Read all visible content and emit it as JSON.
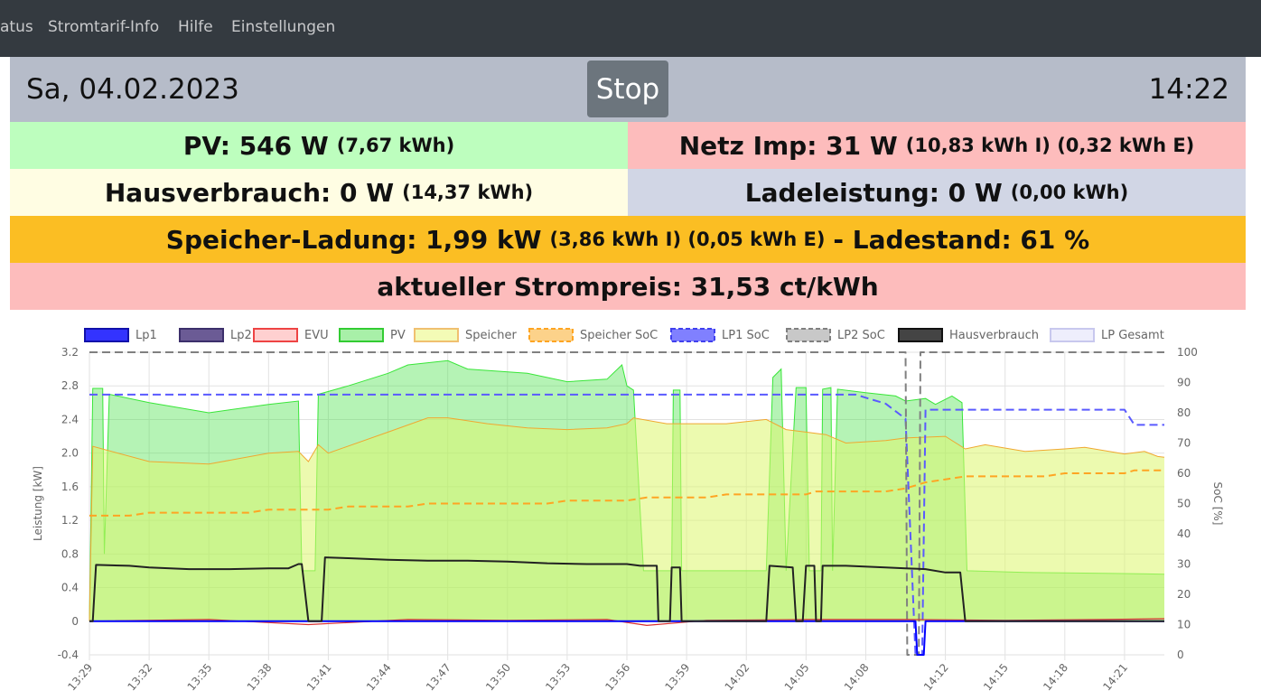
{
  "nav": {
    "items": [
      "atus",
      "Stromtarif-Info",
      "Hilfe",
      "Einstellungen"
    ]
  },
  "header": {
    "date": "Sa, 04.02.2023",
    "stop_label": "Stop",
    "time": "14:22"
  },
  "tiles": {
    "pv": {
      "label": "PV: 546 W",
      "detail": "(7,67 kWh)",
      "color": "#bdfebe"
    },
    "netz": {
      "label": "Netz Imp: 31 W",
      "detail": "(10,83 kWh I) (0,32 kWh E)",
      "color": "#fdbcbc"
    },
    "haus": {
      "label": "Hausverbrauch: 0 W",
      "detail": "(14,37 kWh)",
      "color": "#fffde3"
    },
    "lade": {
      "label": "Ladeleistung: 0 W",
      "detail": "(0,00 kWh)",
      "color": "#d1d6e5"
    },
    "speicher": {
      "label": "Speicher-Ladung: 1,99 kW",
      "detail": "(3,86 kWh I) (0,05 kWh E)",
      "label2": "- Ladestand: 61 %",
      "color": "#fbbe23"
    },
    "preis": {
      "label": "aktueller Strompreis: 31,53 ct/kWh",
      "color": "#fdbcbc"
    }
  },
  "chart_data": {
    "type": "area",
    "legend": [
      "Lp1",
      "Lp2",
      "EVU",
      "PV",
      "Speicher",
      "Speicher SoC",
      "LP1 SoC",
      "LP2 SoC",
      "Hausverbrauch",
      "LP Gesamt"
    ],
    "legend_position": "top",
    "colors": {
      "Lp1": "#0000ff",
      "Lp2": "#4b3d84",
      "EVU": "#ff0000",
      "PV": "#00e000",
      "Speicher": "#eaf98c",
      "Speicher SoC": "#fea523",
      "LP1 SoC": "#5a5aff",
      "LP2 SoC": "#808080",
      "Hausverbrauch": "#000000",
      "LP Gesamt": "#d8d8f5"
    },
    "ylabel_left": "Leistung [kW]",
    "ylabel_right": "SoC [%]",
    "ylim_left": [
      -0.4,
      3.2
    ],
    "ylim_right": [
      0,
      100
    ],
    "yticks_left": [
      "3.2",
      "2.8",
      "2.4",
      "2.0",
      "1.6",
      "1.2",
      "0.8",
      "0.4",
      "0",
      "-0.4"
    ],
    "yticks_right": [
      "100",
      "90",
      "80",
      "70",
      "60",
      "50",
      "40",
      "30",
      "20",
      "10",
      "0"
    ],
    "x_start": "13:29",
    "x_end": "14:23",
    "xticks": [
      "13:29",
      "13:32",
      "13:35",
      "13:38",
      "13:41",
      "13:44",
      "13:47",
      "13:50",
      "13:53",
      "13:56",
      "13:59",
      "14:02",
      "14:05",
      "14:08",
      "14:12",
      "14:15",
      "14:18",
      "14:21"
    ],
    "grid": true,
    "series": [
      {
        "name": "PV",
        "points": [
          [
            "13:29",
            0
          ],
          [
            "13:29:10",
            2.77
          ],
          [
            "13:29:40",
            2.77
          ],
          [
            "13:29:45",
            0.8
          ],
          [
            "13:30",
            2.7
          ],
          [
            "13:32",
            2.6
          ],
          [
            "13:35",
            2.48
          ],
          [
            "13:38",
            2.58
          ],
          [
            "13:39:30",
            2.62
          ],
          [
            "13:39:40",
            0.6
          ],
          [
            "13:40:20",
            0.6
          ],
          [
            "13:40:30",
            2.7
          ],
          [
            "13:42",
            2.8
          ],
          [
            "13:44",
            2.95
          ],
          [
            "13:45",
            3.05
          ],
          [
            "13:47",
            3.1
          ],
          [
            "13:48",
            3.0
          ],
          [
            "13:51",
            2.95
          ],
          [
            "13:53",
            2.85
          ],
          [
            "13:55",
            2.88
          ],
          [
            "13:55:45",
            3.05
          ],
          [
            "13:56",
            2.8
          ],
          [
            "13:56:20",
            2.75
          ],
          [
            "13:56:50",
            0.6
          ],
          [
            "13:57:30",
            0.6
          ],
          [
            "13:58:15",
            0.6
          ],
          [
            "13:58:20",
            2.75
          ],
          [
            "13:58:40",
            2.75
          ],
          [
            "13:58:45",
            0.6
          ],
          [
            "14:03",
            0.6
          ],
          [
            "14:03:20",
            2.9
          ],
          [
            "14:03:45",
            3.0
          ],
          [
            "14:04",
            0.6
          ],
          [
            "14:04:30",
            2.78
          ],
          [
            "14:05",
            2.78
          ],
          [
            "14:05:10",
            0.6
          ],
          [
            "14:05:45",
            0.6
          ],
          [
            "14:05:50",
            2.76
          ],
          [
            "14:06:15",
            2.78
          ],
          [
            "14:06:20",
            0.6
          ],
          [
            "14:06:35",
            2.76
          ],
          [
            "14:08",
            2.72
          ],
          [
            "14:09:30",
            2.68
          ],
          [
            "14:10",
            2.62
          ],
          [
            "14:11",
            2.65
          ],
          [
            "14:11:30",
            2.58
          ],
          [
            "14:12:20",
            2.68
          ],
          [
            "14:12:50",
            2.6
          ],
          [
            "14:13:05",
            0.6
          ],
          [
            "14:16",
            0.58
          ],
          [
            "14:20",
            0.57
          ],
          [
            "14:23",
            0.56
          ]
        ]
      },
      {
        "name": "Speicher",
        "points": [
          [
            "13:29",
            0
          ],
          [
            "13:29:10",
            2.08
          ],
          [
            "13:32",
            1.9
          ],
          [
            "13:35",
            1.87
          ],
          [
            "13:38",
            2.0
          ],
          [
            "13:39:30",
            2.02
          ],
          [
            "13:40",
            1.9
          ],
          [
            "13:40:30",
            2.1
          ],
          [
            "13:41",
            2.0
          ],
          [
            "13:44",
            2.25
          ],
          [
            "13:46",
            2.42
          ],
          [
            "13:47",
            2.42
          ],
          [
            "13:49",
            2.35
          ],
          [
            "13:51",
            2.3
          ],
          [
            "13:53",
            2.28
          ],
          [
            "13:55",
            2.3
          ],
          [
            "13:56",
            2.35
          ],
          [
            "13:56:20",
            2.42
          ],
          [
            "13:58",
            2.35
          ],
          [
            "14:01",
            2.35
          ],
          [
            "14:03",
            2.4
          ],
          [
            "14:04",
            2.28
          ],
          [
            "14:05",
            2.25
          ],
          [
            "14:06",
            2.22
          ],
          [
            "14:07",
            2.12
          ],
          [
            "14:09",
            2.15
          ],
          [
            "14:10",
            2.18
          ],
          [
            "14:12",
            2.2
          ],
          [
            "14:13",
            2.05
          ],
          [
            "14:14",
            2.1
          ],
          [
            "14:16",
            2.02
          ],
          [
            "14:18",
            2.05
          ],
          [
            "14:19",
            2.07
          ],
          [
            "14:21",
            1.99
          ],
          [
            "14:22",
            2.02
          ],
          [
            "14:22:40",
            1.96
          ],
          [
            "14:23",
            1.95
          ]
        ]
      },
      {
        "name": "Hausverbrauch",
        "points": [
          [
            "13:29",
            0
          ],
          [
            "13:29:10",
            0
          ],
          [
            "13:29:20",
            0.67
          ],
          [
            "13:31",
            0.66
          ],
          [
            "13:32",
            0.64
          ],
          [
            "13:34",
            0.62
          ],
          [
            "13:36",
            0.62
          ],
          [
            "13:38",
            0.63
          ],
          [
            "13:39",
            0.63
          ],
          [
            "13:39:30",
            0.68
          ],
          [
            "13:39:40",
            0.68
          ],
          [
            "13:40",
            0
          ],
          [
            "13:40:40",
            0
          ],
          [
            "13:40:50",
            0.76
          ],
          [
            "13:42",
            0.75
          ],
          [
            "13:44",
            0.73
          ],
          [
            "13:46",
            0.72
          ],
          [
            "13:48",
            0.72
          ],
          [
            "13:50",
            0.71
          ],
          [
            "13:52",
            0.69
          ],
          [
            "13:54",
            0.68
          ],
          [
            "13:56",
            0.68
          ],
          [
            "13:56:40",
            0.66
          ],
          [
            "13:57:30",
            0.66
          ],
          [
            "13:57:35",
            0
          ],
          [
            "13:58:10",
            0
          ],
          [
            "13:58:15",
            0.64
          ],
          [
            "13:58:40",
            0.64
          ],
          [
            "13:58:45",
            0
          ],
          [
            "14:03",
            0
          ],
          [
            "14:03:10",
            0.66
          ],
          [
            "14:04:20",
            0.64
          ],
          [
            "14:04:30",
            0
          ],
          [
            "14:04:50",
            0
          ],
          [
            "14:05",
            0.66
          ],
          [
            "14:05:25",
            0.66
          ],
          [
            "14:05:30",
            0
          ],
          [
            "14:05:45",
            0
          ],
          [
            "14:05:50",
            0.66
          ],
          [
            "14:07",
            0.66
          ],
          [
            "14:09",
            0.64
          ],
          [
            "14:10",
            0.63
          ],
          [
            "14:11",
            0.62
          ],
          [
            "14:12",
            0.58
          ],
          [
            "14:12:45",
            0.58
          ],
          [
            "14:13",
            0
          ],
          [
            "14:23",
            0
          ]
        ]
      },
      {
        "name": "EVU",
        "points": [
          [
            "13:29",
            0
          ],
          [
            "13:35",
            0.02
          ],
          [
            "13:40",
            -0.04
          ],
          [
            "13:45",
            0.02
          ],
          [
            "13:50",
            0.01
          ],
          [
            "13:55",
            0.02
          ],
          [
            "13:57",
            -0.05
          ],
          [
            "14:00",
            0.01
          ],
          [
            "14:05",
            0.02
          ],
          [
            "14:10",
            0.02
          ],
          [
            "14:15",
            0.01
          ],
          [
            "14:20",
            0.02
          ],
          [
            "14:23",
            0.03
          ]
        ]
      },
      {
        "name": "Lp1",
        "points": [
          [
            "13:29",
            0
          ],
          [
            "14:10:30",
            0
          ],
          [
            "14:10:35",
            -0.4
          ],
          [
            "14:10:55",
            -0.4
          ],
          [
            "14:11",
            0
          ],
          [
            "14:23",
            0
          ]
        ]
      },
      {
        "name": "Speicher SoC",
        "axis": "right",
        "points": [
          [
            "13:29",
            46
          ],
          [
            "13:31",
            46
          ],
          [
            "13:32",
            47
          ],
          [
            "13:37",
            47
          ],
          [
            "13:38",
            48
          ],
          [
            "13:41",
            48
          ],
          [
            "13:42",
            49
          ],
          [
            "13:45",
            49
          ],
          [
            "13:46",
            50
          ],
          [
            "13:52",
            50
          ],
          [
            "13:53",
            51
          ],
          [
            "13:56",
            51
          ],
          [
            "13:57",
            52
          ],
          [
            "14:00",
            52
          ],
          [
            "14:01",
            53
          ],
          [
            "14:05",
            53
          ],
          [
            "14:05:30",
            54
          ],
          [
            "14:09",
            54
          ],
          [
            "14:10",
            55
          ],
          [
            "14:11",
            57
          ],
          [
            "14:12",
            58
          ],
          [
            "14:13",
            59
          ],
          [
            "14:17",
            59
          ],
          [
            "14:18",
            60
          ],
          [
            "14:21",
            60
          ],
          [
            "14:21:30",
            61
          ],
          [
            "14:23",
            61
          ]
        ]
      },
      {
        "name": "LP1 SoC",
        "axis": "right",
        "points": [
          [
            "13:29",
            86
          ],
          [
            "14:07:30",
            86
          ],
          [
            "14:08",
            85
          ],
          [
            "14:09",
            83
          ],
          [
            "14:10",
            78
          ],
          [
            "14:10:30",
            0
          ],
          [
            "14:10:50",
            0
          ],
          [
            "14:11",
            81
          ],
          [
            "14:21",
            81
          ],
          [
            "14:21:30",
            76
          ],
          [
            "14:23",
            76
          ]
        ]
      },
      {
        "name": "LP2 SoC",
        "axis": "right",
        "points": [
          [
            "13:29",
            100
          ],
          [
            "14:10",
            100
          ],
          [
            "14:10:05",
            0
          ],
          [
            "14:10:40",
            0
          ],
          [
            "14:10:45",
            100
          ],
          [
            "14:23",
            100
          ]
        ]
      }
    ]
  }
}
